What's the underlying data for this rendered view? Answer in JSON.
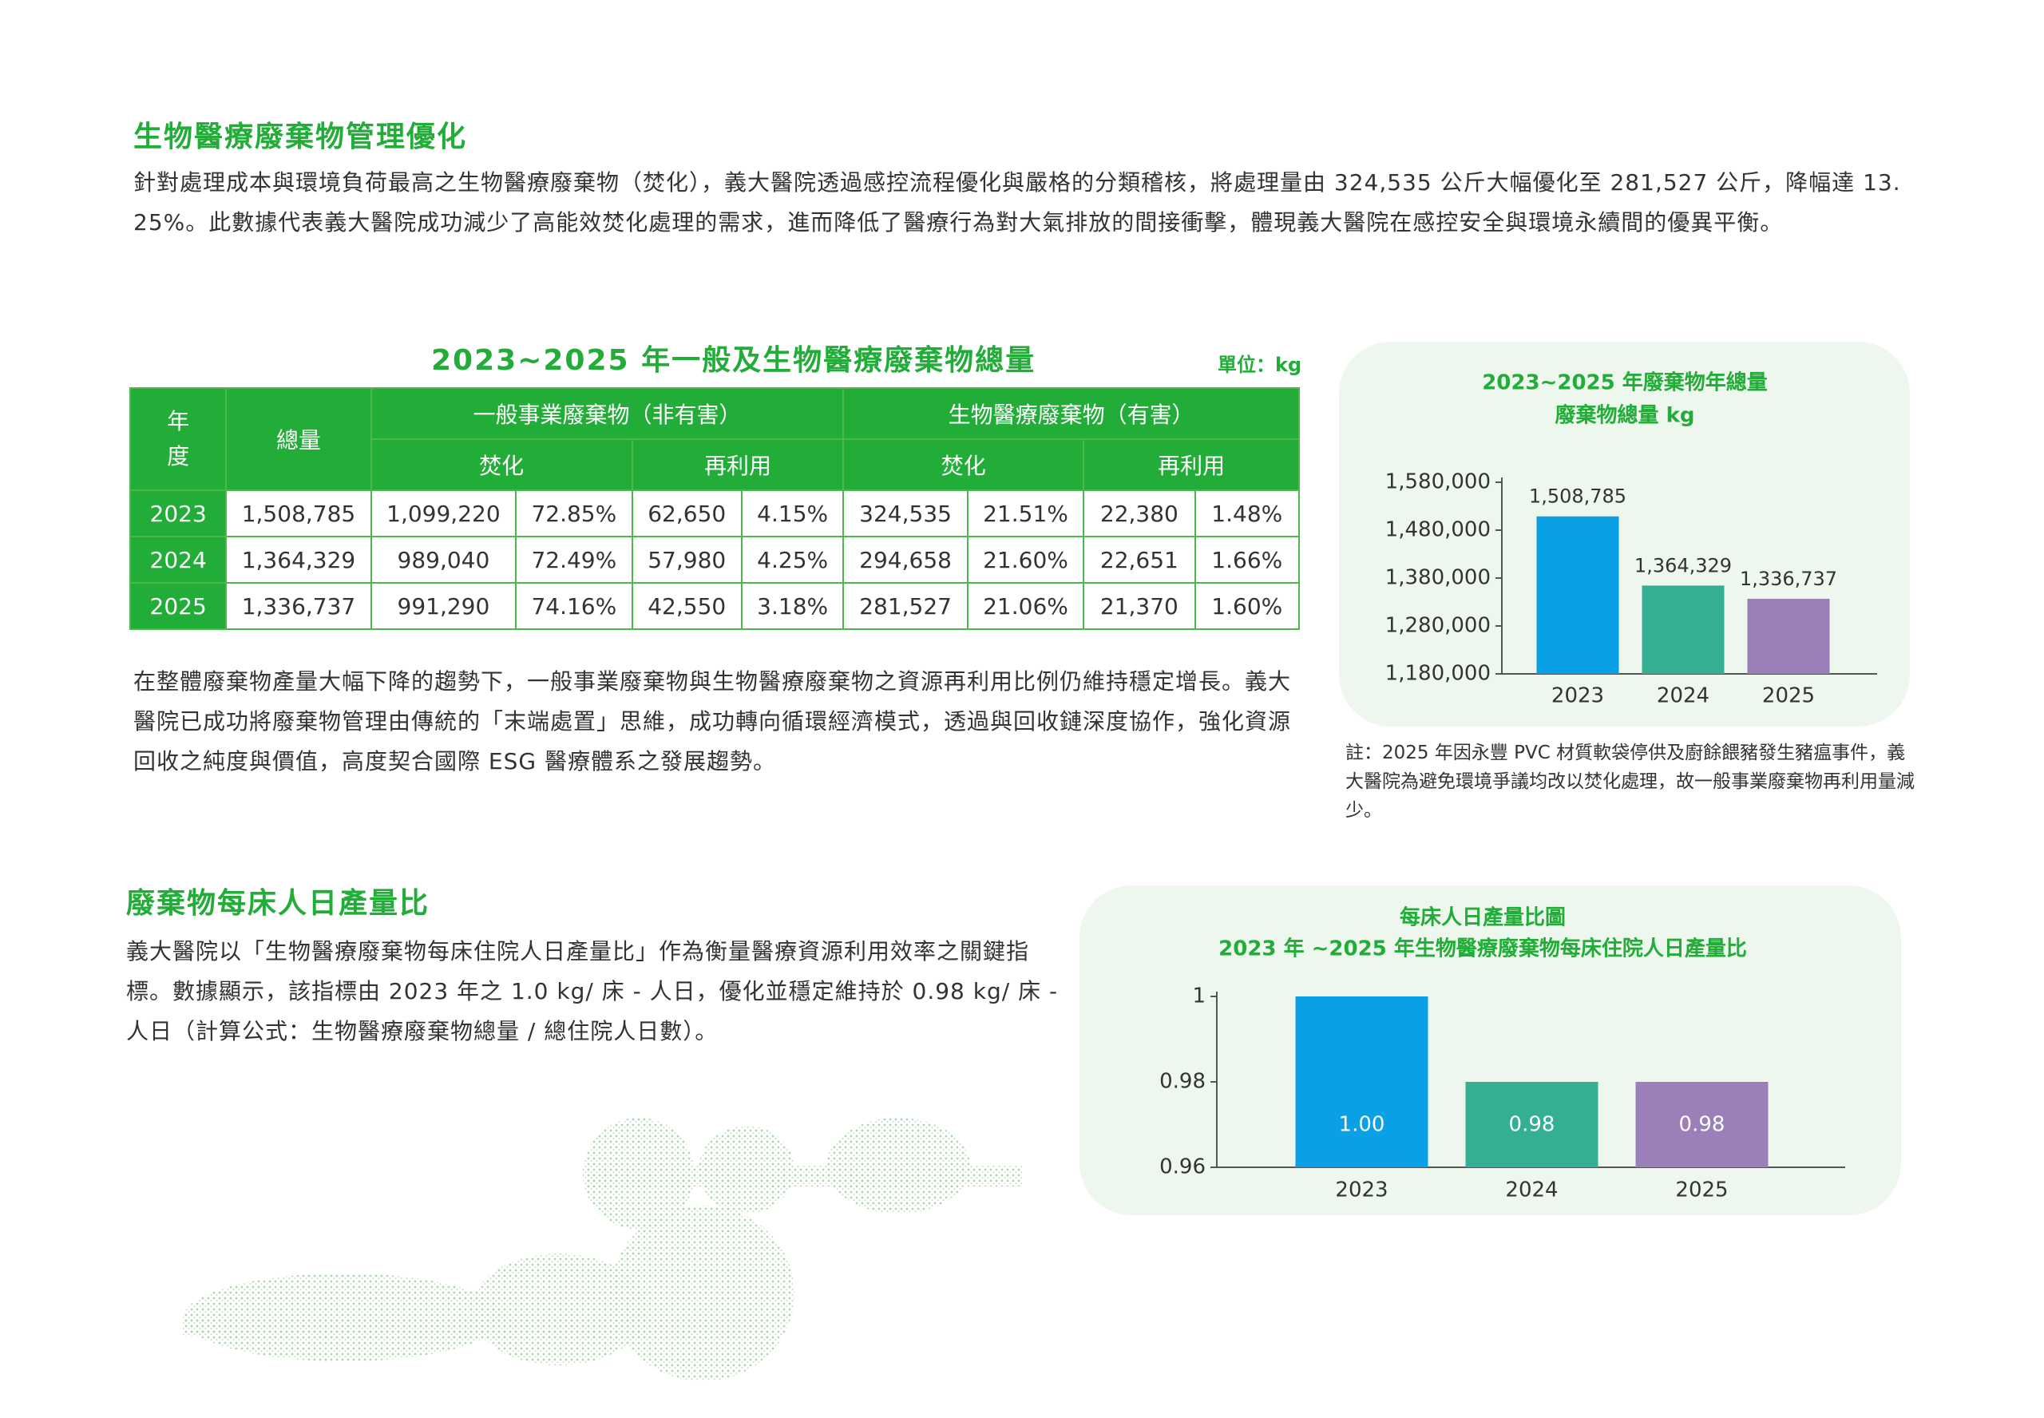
{
  "section1": {
    "title": "生物醫療廢棄物管理優化",
    "paragraph": "針對處理成本與環境負荷最高之生物醫療廢棄物（焚化），義大醫院透過感控流程優化與嚴格的分類稽核，將處理量由 324,535 公斤大幅優化至 281,527 公斤，降幅達 13. 25%。此數據代表義大醫院成功減少了高能效焚化處理的需求，進而降低了醫療行為對大氣排放的間接衝擊，體現義大醫院在感控安全與環境永續間的優異平衡。"
  },
  "table": {
    "title": "2023~2025 年一般及生物醫療廢棄物總量",
    "unit": "單位：kg",
    "header": {
      "year": "年度",
      "total": "總量",
      "general": "一般事業廢棄物（非有害）",
      "medical": "生物醫療廢棄物（有害）",
      "sub": [
        "焚化",
        "再利用",
        "焚化",
        "再利用"
      ]
    },
    "rows": [
      [
        "2023",
        "1,508,785",
        "1,099,220",
        "72.85%",
        "62,650",
        "4.15%",
        "324,535",
        "21.51%",
        "22,380",
        "1.48%"
      ],
      [
        "2024",
        "1,364,329",
        "989,040",
        "72.49%",
        "57,980",
        "4.25%",
        "294,658",
        "21.60%",
        "22,651",
        "1.66%"
      ],
      [
        "2025",
        "1,336,737",
        "991,290",
        "74.16%",
        "42,550",
        "3.18%",
        "281,527",
        "21.06%",
        "21,370",
        "1.60%"
      ]
    ]
  },
  "paragraph2": "在整體廢棄物產量大幅下降的趨勢下，一般事業廢棄物與生物醫療廢棄物之資源再利用比例仍維持穩定增長。義大醫院已成功將廢棄物管理由傳統的「末端處置」思維，成功轉向循環經濟模式，透過與回收鏈深度協作，強化資源回收之純度與價值，高度契合國際 ESG 醫療體系之發展趨勢。",
  "chart1": {
    "type": "bar",
    "title": "2023~2025 年廢棄物年總量",
    "subtitle": "廢棄物總量 kg",
    "categories": [
      "2023",
      "2024",
      "2025"
    ],
    "values": [
      1508785,
      1364329,
      1336737
    ],
    "value_labels": [
      "1,508,785",
      "1,364,329",
      "1,336,737"
    ],
    "colors": [
      "#0aa0e6",
      "#33b094",
      "#9a7fb9"
    ],
    "ylim": [
      1180000,
      1580000
    ],
    "yticks": [
      {
        "value": 1180000,
        "label": "1,180,000"
      },
      {
        "value": 1280000,
        "label": "1,280,000"
      },
      {
        "value": 1380000,
        "label": "1,380,000"
      },
      {
        "value": 1480000,
        "label": "1,480,000"
      },
      {
        "value": 1580000,
        "label": "1,580,000"
      }
    ]
  },
  "note": "註：2025 年因永豐 PVC 材質軟袋停供及廚餘餵豬發生豬瘟事件，義大醫院為避免環境爭議均改以焚化處理，故一般事業廢棄物再利用量減少。",
  "section2": {
    "title": "廢棄物每床人日產量比",
    "paragraph": "義大醫院以「生物醫療廢棄物每床住院人日產量比」作為衡量醫療資源利用效率之關鍵指標。數據顯示，該指標由 2023 年之 1.0 kg/ 床 - 人日，優化並穩定維持於 0.98 kg/ 床 - 人日（計算公式：生物醫療廢棄物總量 / 總住院人日數）。"
  },
  "chart2": {
    "type": "bar",
    "title": "每床人日產量比圖",
    "subtitle": "2023 年 ~2025 年生物醫療廢棄物每床住院人日產量比",
    "categories": [
      "2023",
      "2024",
      "2025"
    ],
    "values": [
      1.0,
      0.98,
      0.98
    ],
    "value_labels": [
      "1.00",
      "0.98",
      "0.98"
    ],
    "colors": [
      "#0aa0e6",
      "#33b094",
      "#9a7fb9"
    ],
    "ylim": [
      0.96,
      1.0
    ],
    "yticks": [
      0.96,
      0.98,
      1
    ]
  }
}
